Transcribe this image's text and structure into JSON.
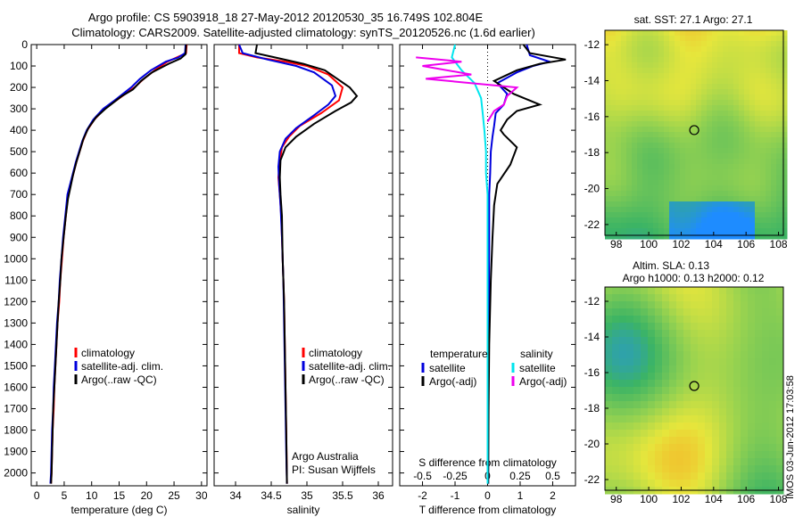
{
  "header": {
    "title_line1": "Argo profile: CS 5903918_18 27-May-2012 20120530_35 16.749S 102.804E",
    "title_line2": "Climatology: CARS2009. Satellite-adjusted climatology: synTS_20120526.nc (1.6d earlier)"
  },
  "colors": {
    "climatology": "#ff0000",
    "satellite": "#0000dd",
    "argo": "#000000",
    "salinity_sat": "#00e5ee",
    "salinity_argo": "#ee00ee"
  },
  "chart_data": [
    {
      "type": "line",
      "id": "temperature",
      "xlabel": "temperature (deg C)",
      "xlim": [
        -1,
        31
      ],
      "ylim": [
        2060,
        0
      ],
      "y_reversed": true,
      "xticks": [
        0,
        5,
        10,
        15,
        20,
        25,
        30
      ],
      "yticks": [
        0,
        100,
        200,
        300,
        400,
        500,
        600,
        700,
        800,
        900,
        1000,
        1100,
        1200,
        1300,
        1400,
        1500,
        1600,
        1700,
        1800,
        1900,
        2000
      ],
      "legend": [
        "climatology",
        "satellite-adj. clim.",
        "Argo(..raw -QC)"
      ],
      "series": [
        {
          "name": "climatology",
          "color": "#ff0000",
          "points": [
            [
              27.3,
              0
            ],
            [
              27.2,
              40
            ],
            [
              25.5,
              60
            ],
            [
              23.8,
              80
            ],
            [
              21.5,
              120
            ],
            [
              19.5,
              160
            ],
            [
              17.8,
              200
            ],
            [
              14.5,
              260
            ],
            [
              12.3,
              300
            ],
            [
              10.5,
              350
            ],
            [
              9.2,
              400
            ],
            [
              8.4,
              450
            ],
            [
              7.8,
              500
            ],
            [
              7.2,
              550
            ],
            [
              6.7,
              600
            ],
            [
              6.2,
              650
            ],
            [
              5.7,
              700
            ],
            [
              5.3,
              800
            ],
            [
              4.9,
              900
            ],
            [
              4.6,
              1000
            ],
            [
              4.3,
              1100
            ],
            [
              4.1,
              1200
            ],
            [
              3.8,
              1300
            ],
            [
              3.6,
              1400
            ],
            [
              3.4,
              1500
            ],
            [
              3.2,
              1600
            ],
            [
              3.1,
              1700
            ],
            [
              2.9,
              1800
            ],
            [
              2.8,
              1900
            ],
            [
              2.7,
              2000
            ],
            [
              2.6,
              2050
            ]
          ]
        },
        {
          "name": "satellite-adj. clim.",
          "color": "#0000dd",
          "points": [
            [
              27.1,
              0
            ],
            [
              27.0,
              40
            ],
            [
              25.8,
              60
            ],
            [
              23.5,
              80
            ],
            [
              20.8,
              120
            ],
            [
              18.8,
              160
            ],
            [
              17.2,
              200
            ],
            [
              14.2,
              260
            ],
            [
              12.1,
              300
            ],
            [
              10.3,
              350
            ],
            [
              9.1,
              400
            ],
            [
              8.3,
              450
            ],
            [
              7.7,
              500
            ],
            [
              7.1,
              550
            ],
            [
              6.6,
              600
            ],
            [
              6.1,
              650
            ],
            [
              5.6,
              700
            ],
            [
              5.2,
              800
            ],
            [
              4.8,
              900
            ],
            [
              4.5,
              1000
            ],
            [
              4.2,
              1100
            ],
            [
              4.0,
              1200
            ],
            [
              3.7,
              1300
            ],
            [
              3.5,
              1400
            ],
            [
              3.3,
              1500
            ],
            [
              3.1,
              1600
            ],
            [
              3.0,
              1700
            ],
            [
              2.8,
              1800
            ],
            [
              2.7,
              1900
            ],
            [
              2.6,
              2000
            ],
            [
              2.5,
              2050
            ]
          ]
        },
        {
          "name": "Argo(..raw -QC)",
          "color": "#000000",
          "points": [
            [
              27.2,
              0
            ],
            [
              27.1,
              45
            ],
            [
              26.2,
              65
            ],
            [
              24.0,
              90
            ],
            [
              21.0,
              130
            ],
            [
              19.0,
              170
            ],
            [
              17.5,
              210
            ],
            [
              15.5,
              240
            ],
            [
              14.0,
              270
            ],
            [
              12.5,
              300
            ],
            [
              10.8,
              340
            ],
            [
              9.4,
              390
            ],
            [
              8.5,
              440
            ],
            [
              7.8,
              500
            ],
            [
              7.2,
              550
            ],
            [
              6.6,
              610
            ],
            [
              6.2,
              660
            ],
            [
              5.7,
              720
            ],
            [
              5.3,
              800
            ],
            [
              4.9,
              900
            ],
            [
              4.5,
              1000
            ],
            [
              4.3,
              1100
            ],
            [
              4.0,
              1200
            ],
            [
              3.8,
              1300
            ],
            [
              3.6,
              1400
            ],
            [
              3.4,
              1500
            ],
            [
              3.2,
              1600
            ],
            [
              3.0,
              1700
            ],
            [
              2.9,
              1800
            ],
            [
              2.8,
              1900
            ],
            [
              2.7,
              2000
            ],
            [
              2.6,
              2050
            ]
          ]
        }
      ]
    },
    {
      "type": "line",
      "id": "salinity",
      "xlabel": "salinity",
      "xlim": [
        33.7,
        36.2
      ],
      "ylim": [
        2060,
        0
      ],
      "y_reversed": true,
      "xticks": [
        34,
        34.5,
        35,
        35.5,
        36
      ],
      "legend": [
        "climatology",
        "satellite-adj. clim.",
        "Argo(..raw -QC)"
      ],
      "annotation": [
        "Argo Australia",
        "PI: Susan Wijffels"
      ],
      "series": [
        {
          "name": "climatology",
          "color": "#ff0000",
          "points": [
            [
              34.05,
              0
            ],
            [
              34.05,
              40
            ],
            [
              34.3,
              60
            ],
            [
              34.7,
              80
            ],
            [
              35.0,
              100
            ],
            [
              35.3,
              140
            ],
            [
              35.5,
              200
            ],
            [
              35.45,
              260
            ],
            [
              35.2,
              320
            ],
            [
              34.9,
              380
            ],
            [
              34.75,
              430
            ],
            [
              34.65,
              480
            ],
            [
              34.62,
              550
            ],
            [
              34.6,
              620
            ],
            [
              34.62,
              700
            ],
            [
              34.64,
              800
            ],
            [
              34.66,
              1000
            ],
            [
              34.68,
              1200
            ],
            [
              34.69,
              1400
            ],
            [
              34.7,
              1600
            ],
            [
              34.71,
              1800
            ],
            [
              34.72,
              2050
            ]
          ]
        },
        {
          "name": "satellite-adj. clim.",
          "color": "#0000dd",
          "points": [
            [
              34.05,
              0
            ],
            [
              34.1,
              40
            ],
            [
              34.45,
              70
            ],
            [
              34.85,
              100
            ],
            [
              35.1,
              130
            ],
            [
              35.35,
              190
            ],
            [
              35.4,
              240
            ],
            [
              35.3,
              280
            ],
            [
              35.1,
              330
            ],
            [
              34.85,
              390
            ],
            [
              34.7,
              440
            ],
            [
              34.62,
              500
            ],
            [
              34.6,
              570
            ],
            [
              34.61,
              650
            ],
            [
              34.63,
              750
            ],
            [
              34.65,
              900
            ],
            [
              34.67,
              1100
            ],
            [
              34.68,
              1300
            ],
            [
              34.69,
              1500
            ],
            [
              34.7,
              1700
            ],
            [
              34.71,
              1900
            ],
            [
              34.72,
              2050
            ]
          ]
        },
        {
          "name": "Argo(..raw -QC)",
          "color": "#000000",
          "points": [
            [
              34.3,
              0
            ],
            [
              34.28,
              40
            ],
            [
              34.55,
              60
            ],
            [
              34.95,
              90
            ],
            [
              35.25,
              120
            ],
            [
              35.6,
              200
            ],
            [
              35.7,
              240
            ],
            [
              35.62,
              270
            ],
            [
              35.4,
              310
            ],
            [
              35.1,
              370
            ],
            [
              34.85,
              430
            ],
            [
              34.7,
              480
            ],
            [
              34.63,
              540
            ],
            [
              34.62,
              620
            ],
            [
              34.63,
              700
            ],
            [
              34.65,
              800
            ],
            [
              34.66,
              1000
            ],
            [
              34.68,
              1200
            ],
            [
              34.69,
              1400
            ],
            [
              34.7,
              1600
            ],
            [
              34.71,
              1800
            ],
            [
              34.72,
              2050
            ]
          ]
        }
      ]
    },
    {
      "type": "line",
      "id": "difference",
      "xlabel": "T difference from climatology",
      "xlabel_top": "S difference from climatology",
      "xlim": [
        -2.7,
        2.7
      ],
      "ylim": [
        2060,
        0
      ],
      "y_reversed": true,
      "xticks": [
        -2,
        -1,
        0,
        1,
        2
      ],
      "xticks_top": [
        "-0.5",
        "-0.25",
        "0",
        "0.25",
        "0.5"
      ],
      "legend_left_title": "temperature",
      "legend_right_title": "salinity",
      "legend_left": [
        "satellite",
        "Argo(-adj)"
      ],
      "legend_right": [
        "satellite",
        "Argo(-adj)"
      ],
      "series": [
        {
          "name": "T satellite",
          "color": "#0000dd",
          "points": [
            [
              1.2,
              0
            ],
            [
              1.3,
              50
            ],
            [
              1.9,
              80
            ],
            [
              1.4,
              100
            ],
            [
              0.9,
              130
            ],
            [
              0.3,
              180
            ],
            [
              0.6,
              230
            ],
            [
              0.5,
              280
            ],
            [
              0.25,
              320
            ],
            [
              0.2,
              380
            ],
            [
              0.15,
              430
            ],
            [
              0.1,
              500
            ],
            [
              0.08,
              600
            ],
            [
              0.05,
              700
            ],
            [
              0.05,
              900
            ],
            [
              0.04,
              1200
            ],
            [
              0.03,
              1500
            ],
            [
              0.02,
              1800
            ],
            [
              0.02,
              2050
            ]
          ]
        },
        {
          "name": "T Argo(-adj)",
          "color": "#000000",
          "points": [
            [
              1.1,
              0
            ],
            [
              1.3,
              40
            ],
            [
              2.4,
              70
            ],
            [
              1.6,
              90
            ],
            [
              0.9,
              120
            ],
            [
              0.2,
              170
            ],
            [
              0.8,
              230
            ],
            [
              1.6,
              280
            ],
            [
              0.9,
              310
            ],
            [
              0.6,
              350
            ],
            [
              0.4,
              400
            ],
            [
              0.5,
              420
            ],
            [
              0.9,
              480
            ],
            [
              0.7,
              560
            ],
            [
              0.3,
              650
            ],
            [
              0.2,
              750
            ],
            [
              0.15,
              900
            ],
            [
              0.1,
              1100
            ],
            [
              0.05,
              1400
            ],
            [
              0.03,
              1700
            ],
            [
              0.02,
              2050
            ]
          ]
        },
        {
          "name": "S satellite",
          "color": "#00e5ee",
          "points": [
            [
              -1.0,
              0
            ],
            [
              -1.1,
              60
            ],
            [
              -0.8,
              120
            ],
            [
              -0.4,
              180
            ],
            [
              -0.2,
              250
            ],
            [
              -0.15,
              320
            ],
            [
              -0.1,
              400
            ],
            [
              -0.05,
              500
            ],
            [
              -0.05,
              600
            ],
            [
              0.0,
              700
            ],
            [
              0.0,
              900
            ],
            [
              0.0,
              1200
            ],
            [
              0.0,
              1500
            ],
            [
              0.0,
              1800
            ],
            [
              0.0,
              2050
            ]
          ]
        },
        {
          "name": "S Argo(-adj)",
          "color": "#ee00ee",
          "points": [
            [
              -2.2,
              60
            ],
            [
              -1.5,
              70
            ],
            [
              -0.8,
              80
            ],
            [
              -2.0,
              100
            ],
            [
              -0.5,
              140
            ],
            [
              -1.9,
              160
            ],
            [
              0.9,
              200
            ],
            [
              0.6,
              240
            ],
            [
              0.5,
              280
            ],
            [
              0.2,
              310
            ],
            [
              0.0,
              360
            ]
          ]
        }
      ]
    }
  ],
  "maps": {
    "top": {
      "title": "sat. SST: 27.1 Argo: 27.1",
      "lat_ticks": [
        "-12",
        "-14",
        "-16",
        "-18",
        "-20",
        "-22"
      ],
      "lon_ticks": [
        "98",
        "100",
        "102",
        "104",
        "106",
        "108"
      ]
    },
    "bottom": {
      "title_line1": "Altim. SLA: 0.13",
      "title_line2": "Argo h1000: 0.13 h2000: 0.12",
      "lat_ticks": [
        "-12",
        "-14",
        "-16",
        "-18",
        "-20",
        "-22"
      ],
      "lon_ticks": [
        "98",
        "100",
        "102",
        "104",
        "106",
        "108"
      ]
    },
    "float_lat": -16.749,
    "float_lon": 102.804
  },
  "stamp": "IMOS 03-Jun-2012 17:03:58"
}
